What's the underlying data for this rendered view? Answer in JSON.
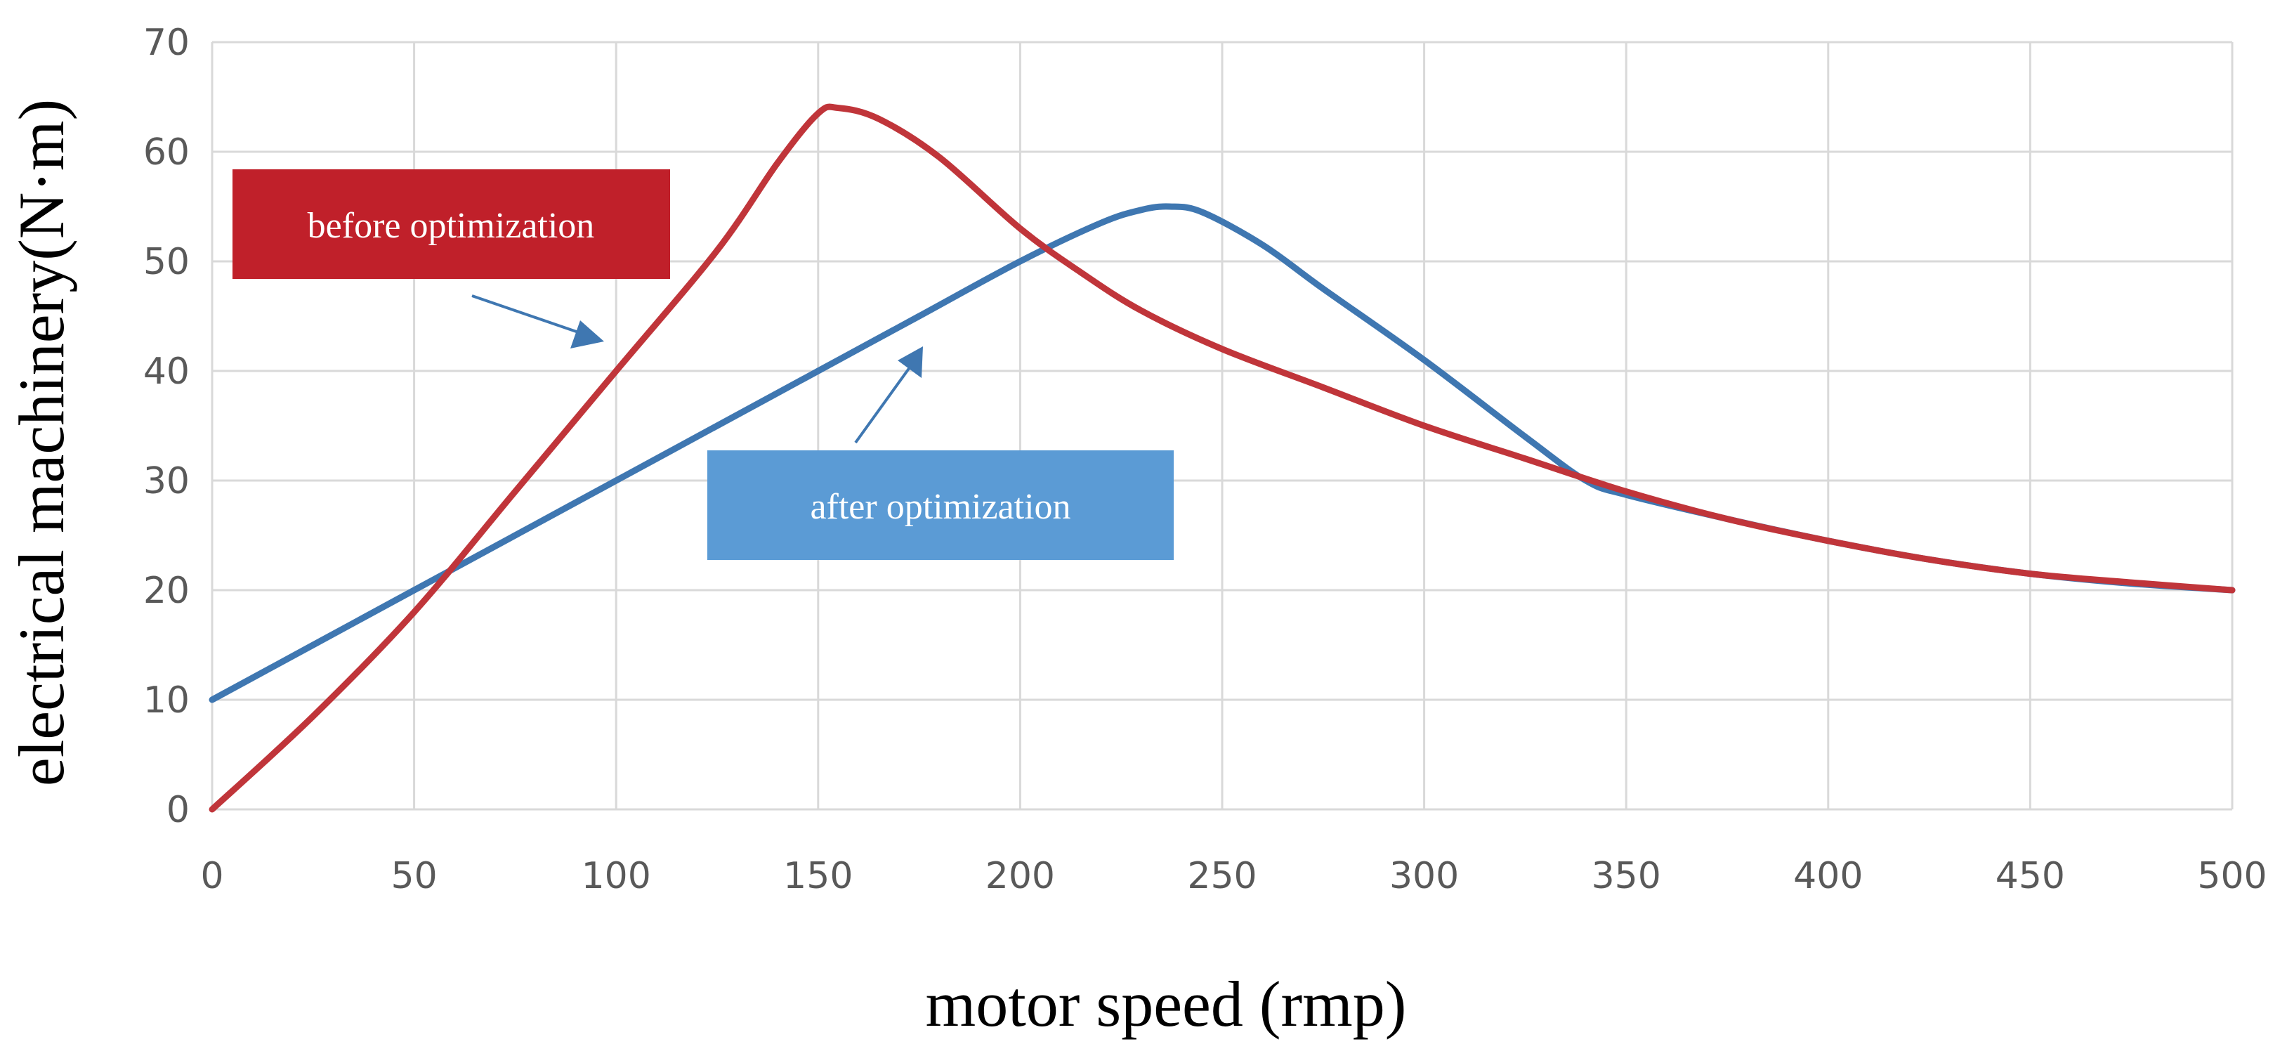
{
  "chart_data": {
    "type": "line",
    "title": "",
    "xlabel": "motor speed (rmp)",
    "ylabel": "electrical machinery(N·m)",
    "xlim": [
      0,
      500
    ],
    "ylim": [
      0,
      70
    ],
    "x_ticks": [
      0,
      50,
      100,
      150,
      200,
      250,
      300,
      350,
      400,
      450,
      500
    ],
    "y_ticks": [
      0,
      10,
      20,
      30,
      40,
      50,
      60,
      70
    ],
    "grid": true,
    "legend": "none",
    "series": [
      {
        "name": "before optimization",
        "color": "#C0353A",
        "x": [
          0,
          25,
          50,
          75,
          100,
          125,
          140,
          150,
          155,
          165,
          180,
          200,
          215,
          230,
          250,
          275,
          300,
          325,
          350,
          375,
          400,
          425,
          450,
          475,
          500
        ],
        "y": [
          0,
          8.5,
          18,
          29,
          40,
          51,
          59,
          63.5,
          64,
          63,
          59.5,
          53,
          49,
          45.5,
          42,
          38.5,
          35,
          32,
          29,
          26.5,
          24.5,
          22.8,
          21.5,
          20.7,
          20
        ]
      },
      {
        "name": "after optimization",
        "color": "#3F77B1",
        "x": [
          0,
          25,
          50,
          75,
          100,
          125,
          150,
          175,
          200,
          220,
          230,
          237,
          245,
          260,
          275,
          300,
          325,
          340,
          350,
          375,
          400,
          425,
          450,
          475,
          500
        ],
        "y": [
          10,
          15,
          20,
          25,
          30,
          35,
          40,
          45,
          50,
          53.5,
          54.7,
          55,
          54.5,
          51.5,
          47.5,
          41,
          34,
          30,
          28.7,
          26.5,
          24.5,
          22.8,
          21.5,
          20.6,
          20
        ]
      }
    ],
    "annotations": [
      {
        "text": "before optimization",
        "box_color": "#C0202A",
        "text_color": "#FFFFFF"
      },
      {
        "text": "after optimization",
        "box_color": "#5B9BD5",
        "text_color": "#FFFFFF"
      }
    ],
    "colors": {
      "grid": "#D9D9D9",
      "tick_text": "#595959",
      "arrow": "#3F77B1"
    }
  }
}
